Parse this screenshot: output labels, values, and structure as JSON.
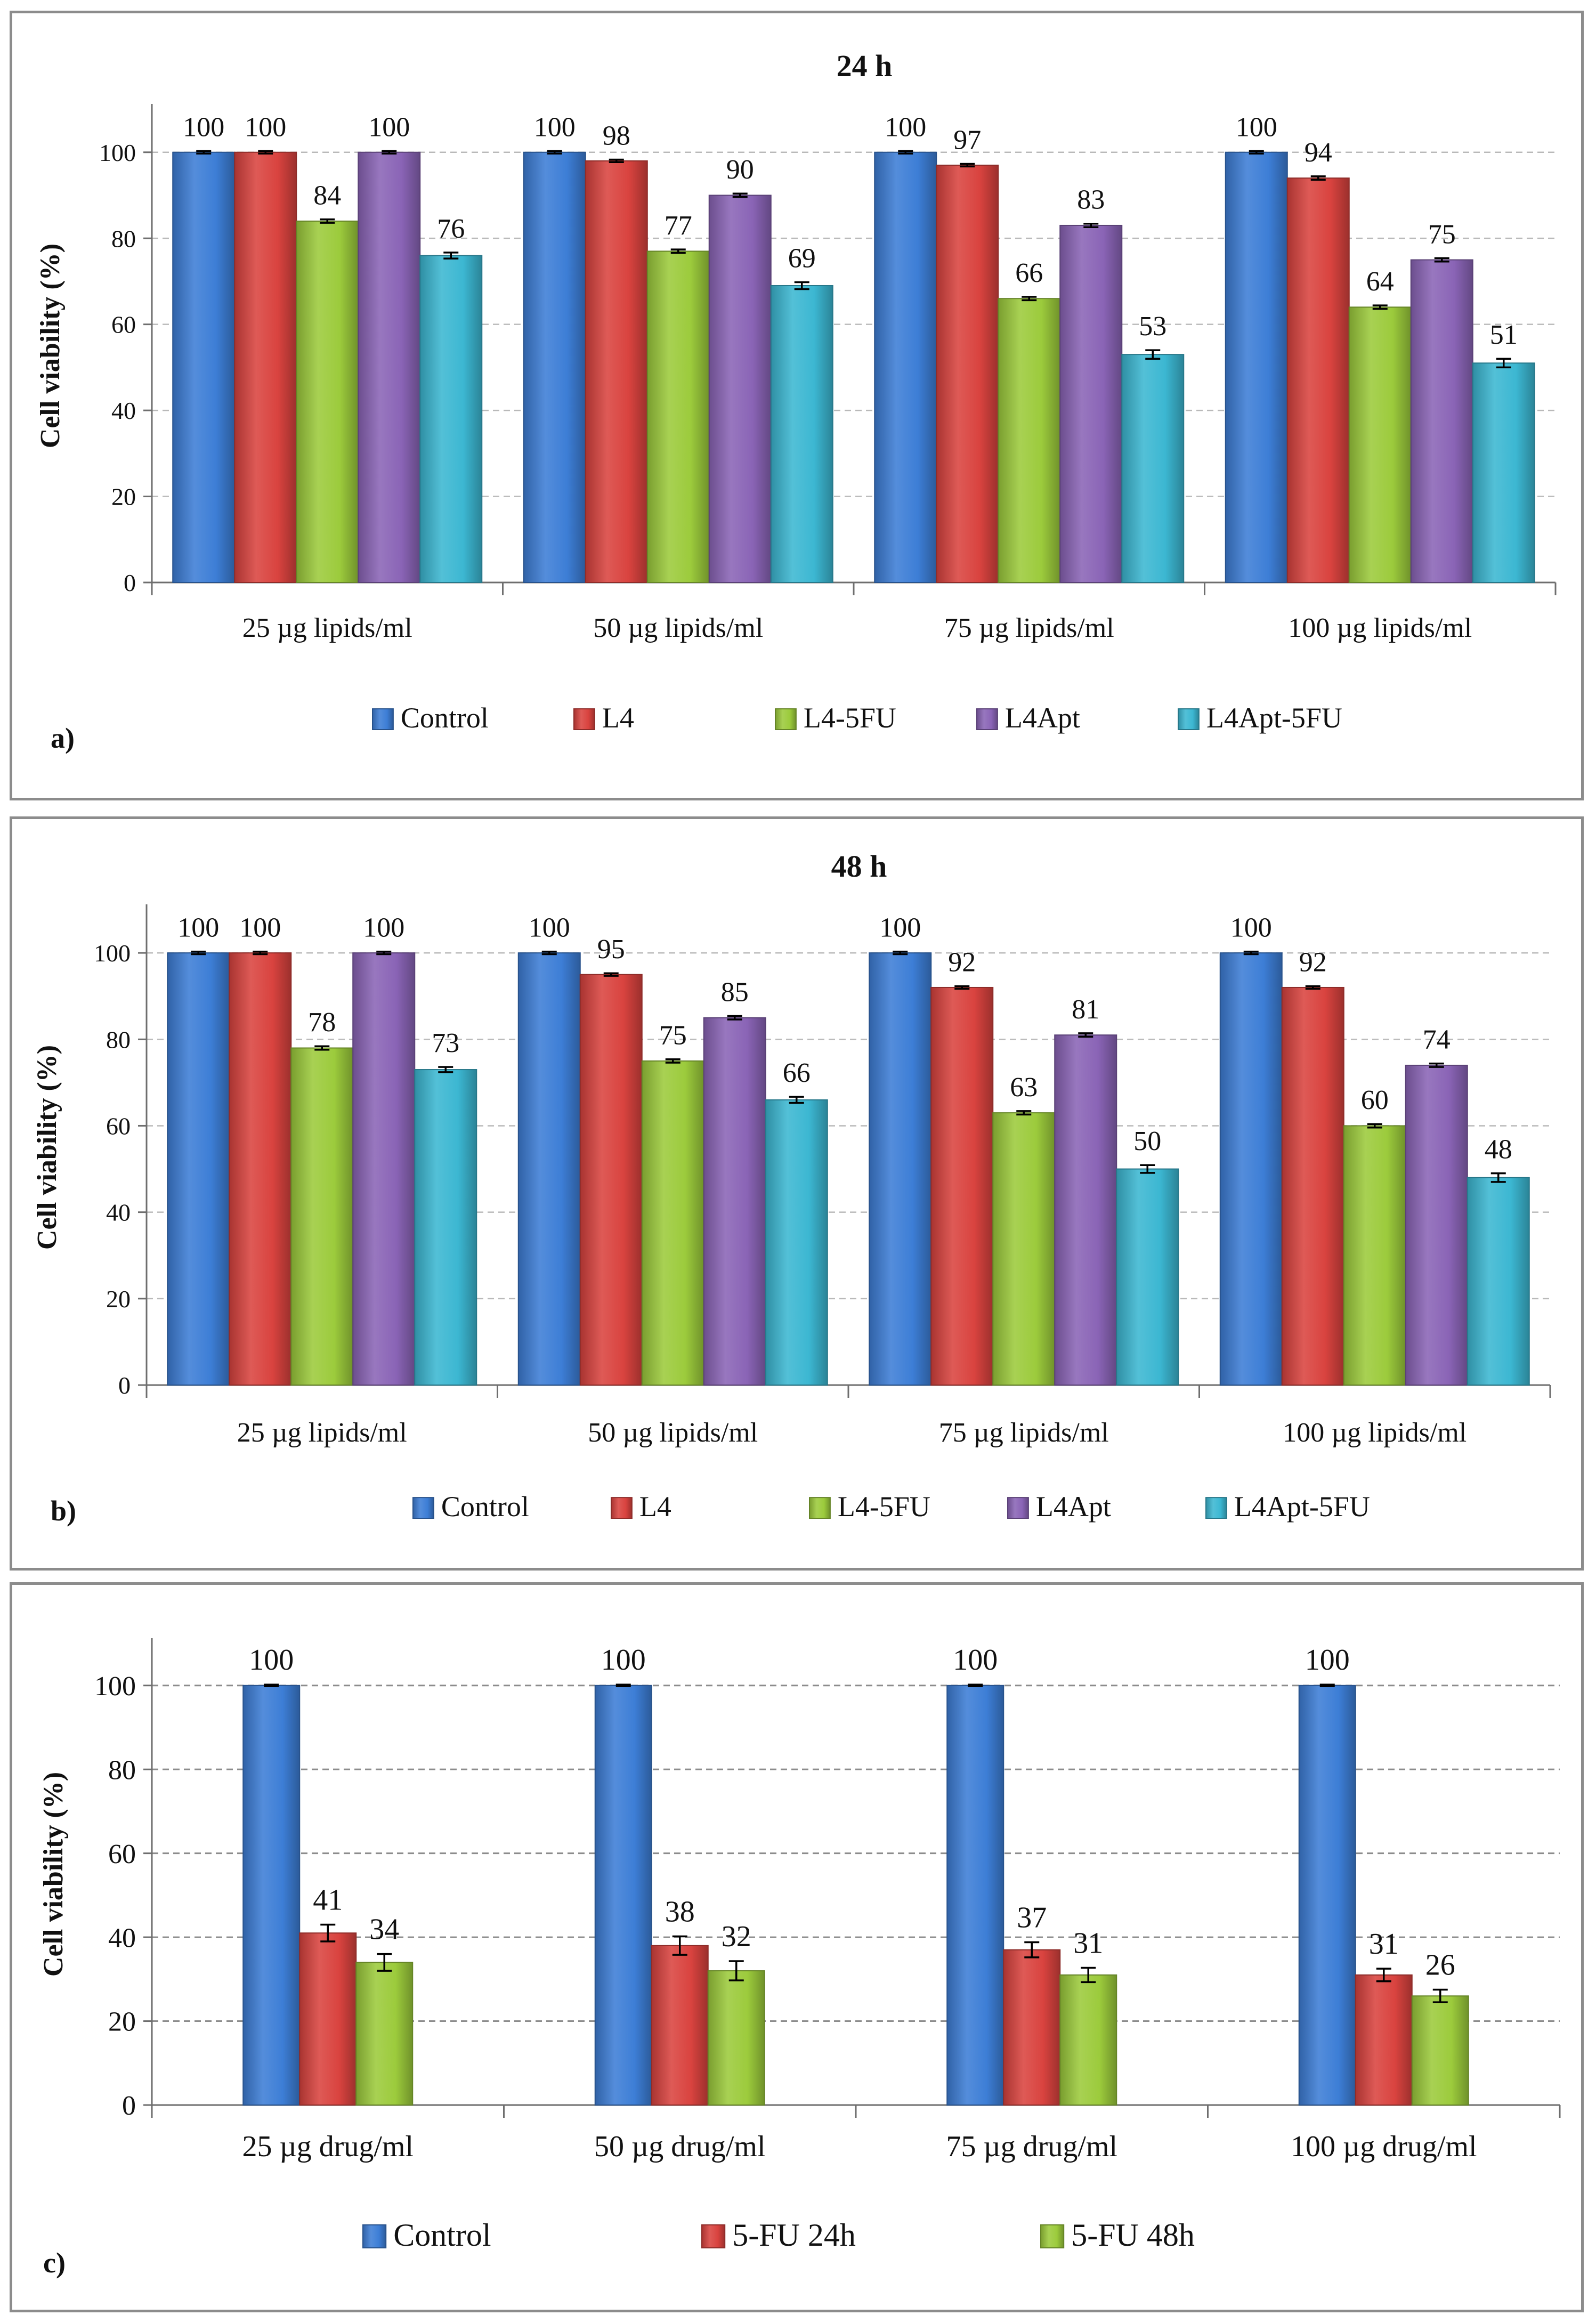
{
  "chart_data": [
    {
      "id": "a",
      "type": "bar",
      "panel_label": "a)",
      "title": "24 h",
      "xlabel": "",
      "ylabel": "Cell viability (%)",
      "ylim": [
        0,
        110
      ],
      "yticks": [
        "0",
        "20",
        "40",
        "60",
        "80",
        "100"
      ],
      "grid": true,
      "legend_position": "bottom",
      "categories": [
        "25 µg lipids/ml",
        "50 µg lipids/ml",
        "75 µg lipids/ml",
        "100 µg lipids/ml"
      ],
      "series": [
        {
          "name": "Control",
          "color": "#3d7ed6",
          "values": [
            100,
            100,
            100,
            100
          ],
          "labels": [
            "100",
            "100",
            "100",
            "100"
          ],
          "errors": [
            0.3,
            0.3,
            0.3,
            0.3
          ]
        },
        {
          "name": "L4",
          "color": "#d9433f",
          "values": [
            100,
            98,
            97,
            94
          ],
          "labels": [
            "100",
            "98",
            "97",
            "94"
          ],
          "errors": [
            0.3,
            0.3,
            0.3,
            0.4
          ]
        },
        {
          "name": "L4-5FU",
          "color": "#9ccb3c",
          "values": [
            84,
            77,
            66,
            64
          ],
          "labels": [
            "84",
            "77",
            "66",
            "64"
          ],
          "errors": [
            0.4,
            0.4,
            0.4,
            0.4
          ]
        },
        {
          "name": "L4Apt",
          "color": "#8a64b6",
          "values": [
            100,
            90,
            83,
            75
          ],
          "labels": [
            "100",
            "90",
            "83",
            "75"
          ],
          "errors": [
            0.3,
            0.4,
            0.4,
            0.4
          ]
        },
        {
          "name": "L4Apt-5FU",
          "color": "#3cb7d2",
          "values": [
            76,
            69,
            53,
            51
          ],
          "labels": [
            "76",
            "69",
            "53",
            "51"
          ],
          "errors": [
            0.7,
            0.8,
            1.0,
            1.0
          ]
        }
      ]
    },
    {
      "id": "b",
      "type": "bar",
      "panel_label": "b)",
      "title": "48 h",
      "xlabel": "",
      "ylabel": "Cell viability (%)",
      "ylim": [
        0,
        110
      ],
      "yticks": [
        "0",
        "20",
        "40",
        "60",
        "80",
        "100"
      ],
      "grid": true,
      "legend_position": "bottom",
      "categories": [
        "25 µg lipids/ml",
        "50 µg lipids/ml",
        "75 µg lipids/ml",
        "100 µg lipids/ml"
      ],
      "series": [
        {
          "name": "Control",
          "color": "#3d7ed6",
          "values": [
            100,
            100,
            100,
            100
          ],
          "labels": [
            "100",
            "100",
            "100",
            "100"
          ],
          "errors": [
            0.3,
            0.3,
            0.3,
            0.3
          ]
        },
        {
          "name": "L4",
          "color": "#d9433f",
          "values": [
            100,
            95,
            92,
            92
          ],
          "labels": [
            "100",
            "95",
            "92",
            "92"
          ],
          "errors": [
            0.3,
            0.3,
            0.3,
            0.3
          ]
        },
        {
          "name": "L4-5FU",
          "color": "#9ccb3c",
          "values": [
            78,
            75,
            63,
            60
          ],
          "labels": [
            "78",
            "75",
            "63",
            "60"
          ],
          "errors": [
            0.4,
            0.4,
            0.4,
            0.4
          ]
        },
        {
          "name": "L4Apt",
          "color": "#8a64b6",
          "values": [
            100,
            85,
            81,
            74
          ],
          "labels": [
            "100",
            "85",
            "81",
            "74"
          ],
          "errors": [
            0.3,
            0.4,
            0.4,
            0.4
          ]
        },
        {
          "name": "L4Apt-5FU",
          "color": "#3cb7d2",
          "values": [
            73,
            66,
            50,
            48
          ],
          "labels": [
            "73",
            "66",
            "50",
            "48"
          ],
          "errors": [
            0.6,
            0.7,
            0.9,
            1.0
          ]
        }
      ]
    },
    {
      "id": "c",
      "type": "bar",
      "panel_label": "c)",
      "title": "",
      "xlabel": "",
      "ylabel": "Cell viability (%)",
      "ylim": [
        0,
        110
      ],
      "yticks": [
        "0",
        "20",
        "40",
        "60",
        "80",
        "100"
      ],
      "grid": true,
      "legend_position": "bottom",
      "categories": [
        "25 µg drug/ml",
        "50 µg drug/ml",
        "75 µg drug/ml",
        "100 µg drug/ml"
      ],
      "series": [
        {
          "name": "Control",
          "color": "#3d7ed6",
          "values": [
            100,
            100,
            100,
            100
          ],
          "labels": [
            "100",
            "100",
            "100",
            "100"
          ],
          "errors": [
            0.2,
            0.2,
            0.2,
            0.2
          ]
        },
        {
          "name": "5-FU 24h",
          "color": "#d9433f",
          "values": [
            41,
            38,
            37,
            31
          ],
          "labels": [
            "41",
            "38",
            "37",
            "31"
          ],
          "errors": [
            2.0,
            2.2,
            1.8,
            1.5
          ]
        },
        {
          "name": "5-FU 48h",
          "color": "#9ccb3c",
          "values": [
            34,
            32,
            31,
            26
          ],
          "labels": [
            "34",
            "32",
            "31",
            "26"
          ],
          "errors": [
            2.0,
            2.3,
            1.7,
            1.5
          ]
        }
      ]
    }
  ]
}
